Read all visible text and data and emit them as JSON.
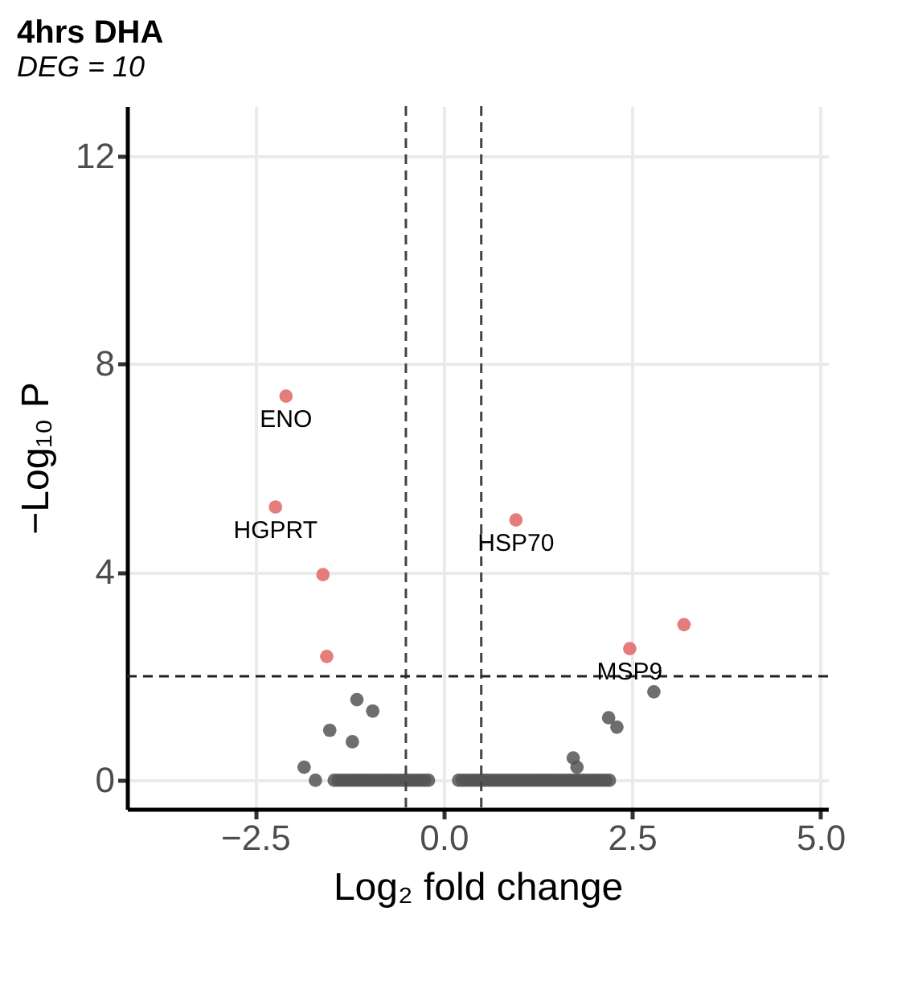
{
  "chart_data": {
    "type": "scatter",
    "title": "4hrs DHA",
    "subtitle": "DEG = 10",
    "xlabel": "Log₂ fold change",
    "ylabel": "−Log₁₀ P",
    "xlim": [
      -4.2,
      5.1
    ],
    "ylim": [
      -0.55,
      12.95
    ],
    "xticks": [
      {
        "value": -2.5,
        "label": "−2.5"
      },
      {
        "value": 0,
        "label": "0.0"
      },
      {
        "value": 2.5,
        "label": "2.5"
      },
      {
        "value": 5,
        "label": "5.0"
      }
    ],
    "yticks": [
      0,
      4,
      8,
      12
    ],
    "grid": true,
    "marker": "circle",
    "series": [
      {
        "color": "#e06666",
        "x": [
          -2.09,
          -2.23,
          0.96,
          -1.6,
          -1.55,
          2.47,
          3.19
        ],
        "values": [
          7.38,
          5.25,
          5.0,
          3.95,
          2.38,
          2.53,
          2.99
        ]
      },
      {
        "color": "#555555",
        "x": [
          2.79,
          2.19,
          2.3,
          1.72,
          1.77,
          -1.15,
          -0.94,
          -1.51,
          -1.21,
          -1.85,
          -1.7,
          -1.45,
          -1.4,
          -1.35,
          -1.3,
          -1.25,
          -1.2,
          -1.15,
          -1.1,
          -1.05,
          -1.0,
          -0.95,
          -0.9,
          -0.85,
          -0.8,
          -0.75,
          -0.7,
          -0.65,
          -0.6,
          -0.55,
          -0.5,
          -0.45,
          -0.4,
          -0.35,
          -0.3,
          -0.25,
          -0.2,
          0.2,
          0.25,
          0.3,
          0.35,
          0.4,
          0.45,
          0.5,
          0.55,
          0.6,
          0.65,
          0.7,
          0.75,
          0.8,
          0.85,
          0.9,
          0.95,
          1.0,
          1.05,
          1.1,
          1.15,
          1.2,
          1.25,
          1.3,
          1.35,
          1.4,
          1.45,
          1.5,
          1.55,
          1.6,
          1.65,
          1.7,
          1.75,
          1.8,
          1.85,
          1.9,
          1.95,
          2.0,
          2.05,
          2.1,
          2.15,
          2.2
        ],
        "values": [
          1.7,
          1.2,
          1.02,
          0.43,
          0.25,
          1.55,
          1.33,
          0.96,
          0.74,
          0.25,
          0,
          0,
          0,
          0,
          0,
          0,
          0,
          0,
          0,
          0,
          0,
          0,
          0,
          0,
          0,
          0,
          0,
          0,
          0,
          0,
          0,
          0,
          0,
          0,
          0,
          0,
          0,
          0,
          0,
          0,
          0,
          0,
          0,
          0,
          0,
          0,
          0,
          0,
          0,
          0,
          0,
          0,
          0,
          0,
          0,
          0,
          0,
          0,
          0,
          0,
          0,
          0,
          0,
          0,
          0,
          0,
          0,
          0,
          0,
          0,
          0,
          0,
          0,
          0,
          0,
          0,
          0,
          0
        ]
      }
    ],
    "ref_lines": [
      {
        "axis": "x",
        "value": -0.5,
        "line_style": "dashed",
        "color": "#444444"
      },
      {
        "axis": "x",
        "value": 0.5,
        "line_style": "dashed",
        "color": "#444444"
      },
      {
        "axis": "y",
        "value": 2,
        "line_style": "dashed",
        "color": "#222222"
      }
    ],
    "annotations": [
      {
        "text": "ENO",
        "x": -2.09,
        "y": 7.38
      },
      {
        "text": "HGPRT",
        "x": -2.23,
        "y": 5.25
      },
      {
        "text": "HSP70",
        "x": 0.96,
        "y": 5.0
      },
      {
        "text": "MSP9",
        "x": 2.47,
        "y": 2.53
      }
    ]
  }
}
